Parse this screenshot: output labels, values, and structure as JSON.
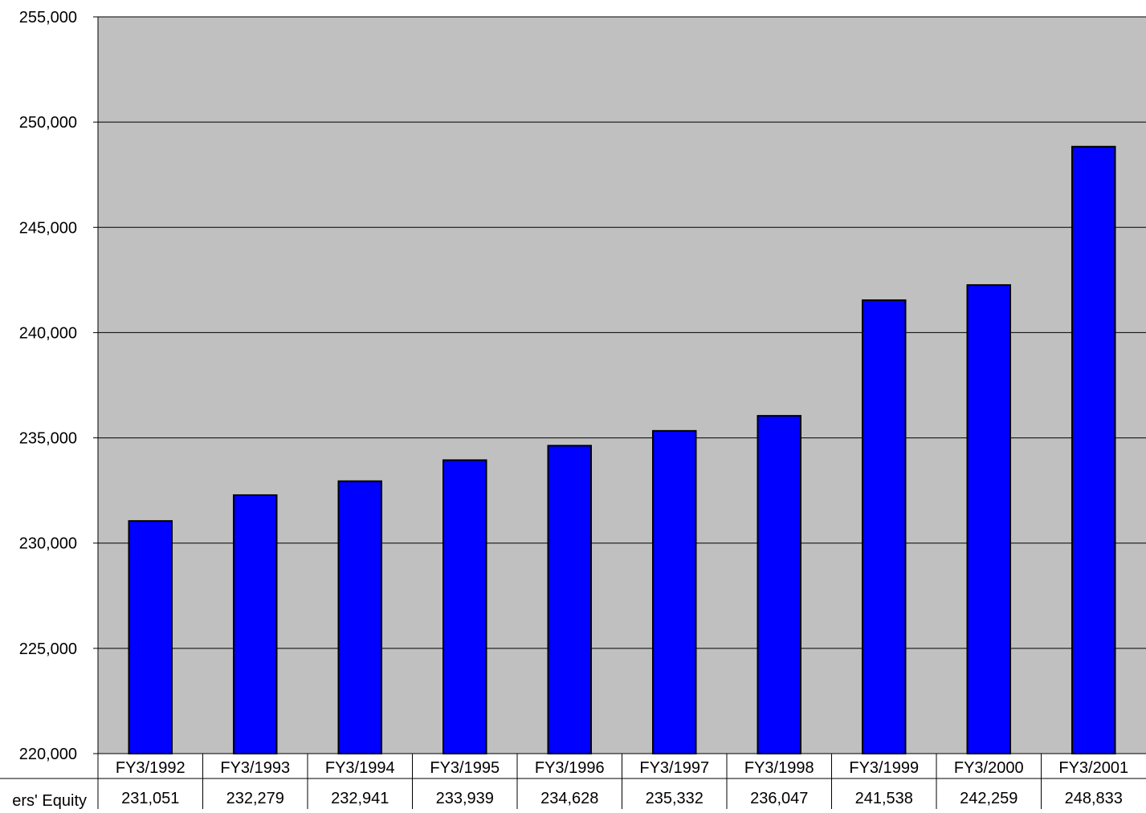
{
  "chart_data": {
    "type": "bar",
    "title": "",
    "xlabel": "",
    "ylabel": "",
    "ylim": [
      220000,
      255000
    ],
    "yticks": [
      220000,
      225000,
      230000,
      235000,
      240000,
      245000,
      250000,
      255000
    ],
    "ytick_labels": [
      "220,000",
      "225,000",
      "230,000",
      "235,000",
      "240,000",
      "245,000",
      "250,000",
      "255,000"
    ],
    "grid": true,
    "data_table": true,
    "categories": [
      "FY3/1992",
      "FY3/1993",
      "FY3/1994",
      "FY3/1995",
      "FY3/1996",
      "FY3/1997",
      "FY3/1998",
      "FY3/1999",
      "FY3/2000",
      "FY3/2001"
    ],
    "series": [
      {
        "name": "ers' Equity",
        "color": "#0000ff",
        "values": [
          231051,
          232279,
          232941,
          233939,
          234628,
          235332,
          236047,
          241538,
          242259,
          248833
        ],
        "value_labels": [
          "231,051",
          "232,279",
          "232,941",
          "233,939",
          "234,628",
          "235,332",
          "236,047",
          "241,538",
          "242,259",
          "248,833"
        ]
      }
    ],
    "colors": {
      "plot_background": "#c0c0c0",
      "bar": "#0000ff",
      "bar_edge": "#000000"
    }
  }
}
